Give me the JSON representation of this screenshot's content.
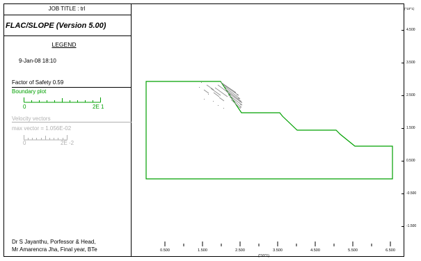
{
  "header": {
    "job_title": "JOB TITLE : trl"
  },
  "app": {
    "title": "FLAC/SLOPE (Version 5.00)"
  },
  "legend": {
    "heading": "LEGEND",
    "date": "9-Jan-08  18:10",
    "factor_of_safety": "Factor of Safety  0.59",
    "boundary_plot": {
      "label": "Boundary plot",
      "scale_min": "0",
      "scale_max": "2E  1",
      "color": "#00a000"
    },
    "velocity_vectors": {
      "label": "Velocity vectors",
      "max_vector": "max vector =    1.056E-02",
      "scale_min": "0",
      "scale_max": "2E  -2",
      "color": "#b0b0b0"
    }
  },
  "credits": {
    "line1": "Dr S Jayanthu, Porfessor & Head,",
    "line2": "Mr Amarencra Jha, Final year, BTe"
  },
  "axes": {
    "y_unit": "(*10^1)",
    "x_unit": "(*10^1)",
    "y_ticks": [
      "4.500",
      "3.500",
      "2.500",
      "1.500",
      "0.500",
      "-0.500",
      "-1.500"
    ],
    "x_ticks": [
      "0.500",
      "1.500",
      "2.500",
      "3.500",
      "4.500",
      "5.500",
      "6.500"
    ]
  },
  "model": {
    "slope_boundary_color": "#00a000",
    "vector_color": "#888888"
  }
}
